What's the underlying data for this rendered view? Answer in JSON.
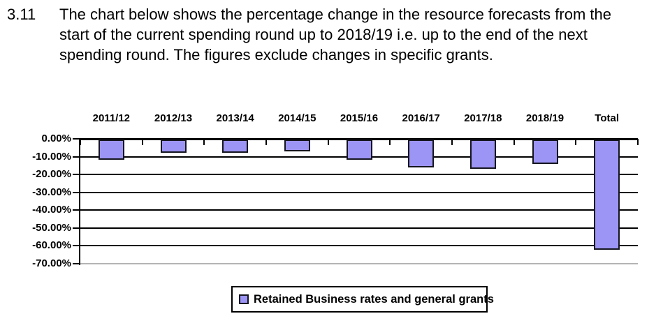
{
  "paragraph": {
    "number": "3.11",
    "lines": [
      "The chart below shows the percentage change in the resource forecasts from the",
      "start of the current spending round up to 2018/19 i.e. up to the end of the next",
      "spending round. The figures exclude changes in specific grants."
    ]
  },
  "chart_data": {
    "type": "bar",
    "title": "",
    "xlabel": "",
    "ylabel": "",
    "categories": [
      "2011/12",
      "2012/13",
      "2013/14",
      "2014/15",
      "2015/16",
      "2016/17",
      "2017/18",
      "2018/19",
      "Total"
    ],
    "series": [
      {
        "name": "Retained Business rates and general grants",
        "values": [
          -11.2,
          -7.4,
          -7.4,
          -6.8,
          -11.5,
          -15.7,
          -16.3,
          -13.8,
          -61.9
        ]
      }
    ],
    "y_tick_labels": [
      "0.00%",
      "-10.00%",
      "-20.00%",
      "-30.00%",
      "-40.00%",
      "-50.00%",
      "-60.00%",
      "-70.00%"
    ],
    "ylim": [
      -70,
      0
    ],
    "grid": true,
    "category_labels_position": "top",
    "legend": {
      "position": "bottom",
      "label": "Retained Business rates and general grants"
    },
    "colors": {
      "bar_fill": "#9d95f5",
      "bar_border": "#15151f",
      "gridline": "#000000",
      "bottom_gridline": "#b4b4b4",
      "text": "#000000"
    }
  }
}
